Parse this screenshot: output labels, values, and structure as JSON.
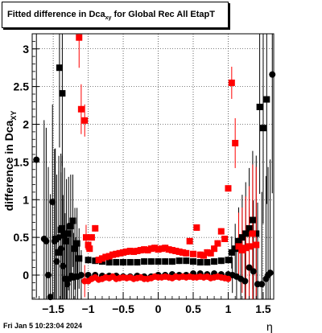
{
  "chart_data": {
    "type": "scatter",
    "title_main": "Fitted difference in Dca",
    "title_sub": "xy",
    "title_rest": " for Global Rec All EtapT",
    "xlabel": "η",
    "ylabel_main": "difference in Dca",
    "ylabel_sub": "XY",
    "xlim": [
      -1.8,
      1.65
    ],
    "ylim": [
      -0.32,
      3.2
    ],
    "xticks": [
      -1.5,
      -1,
      -0.5,
      0,
      0.5,
      1,
      1.5
    ],
    "xtick_labels": [
      "−1.5",
      "−1",
      "−0.5",
      "0",
      "0.5",
      "1",
      "1.5"
    ],
    "yticks": [
      0,
      0.5,
      1,
      1.5,
      2,
      2.5,
      3
    ],
    "ytick_labels": [
      "0",
      "0.5",
      "1",
      "1.5",
      "2",
      "2.5",
      "3"
    ],
    "grid": true,
    "series": [
      {
        "color": "#000000",
        "marker": "circle",
        "points": [
          [
            -1.74,
            1.53
          ],
          [
            -1.63,
            0.48
          ],
          [
            -1.6,
            0.45
          ],
          [
            -1.57,
            0.0
          ],
          [
            -1.54,
            -0.29
          ],
          [
            -1.51,
            0.97
          ],
          [
            -1.48,
            0.45
          ],
          [
            -1.45,
            0.18
          ],
          [
            -1.42,
            0.5
          ],
          [
            -1.39,
            0.35
          ],
          [
            -1.36,
            0.12
          ],
          [
            -1.33,
            -0.05
          ],
          [
            -1.3,
            -0.12
          ],
          [
            -1.27,
            -0.05
          ],
          [
            -1.24,
            -0.01
          ],
          [
            -1.21,
            -0.03
          ],
          [
            -1.18,
            -0.02
          ],
          [
            -1.15,
            -0.02
          ],
          [
            -1.1,
            0.0
          ],
          [
            -1.0,
            0.0
          ],
          [
            -0.9,
            0.0
          ],
          [
            -0.8,
            -0.01
          ],
          [
            -0.7,
            -0.01
          ],
          [
            -0.6,
            -0.01
          ],
          [
            -0.5,
            -0.02
          ],
          [
            -0.4,
            -0.02
          ],
          [
            -0.3,
            -0.01
          ],
          [
            -0.2,
            -0.02
          ],
          [
            -0.1,
            -0.02
          ],
          [
            0.0,
            0.0
          ],
          [
            0.1,
            0.0
          ],
          [
            0.2,
            0.01
          ],
          [
            0.3,
            0.0
          ],
          [
            0.4,
            0.0
          ],
          [
            0.5,
            0.02
          ],
          [
            0.6,
            0.02
          ],
          [
            0.7,
            0.01
          ],
          [
            0.8,
            0.02
          ],
          [
            0.9,
            0.01
          ],
          [
            1.0,
            0.01
          ],
          [
            1.06,
            0.0
          ],
          [
            1.12,
            -0.02
          ],
          [
            1.18,
            -0.05
          ],
          [
            1.24,
            -0.08
          ],
          [
            1.3,
            0.1
          ],
          [
            1.36,
            0.05
          ],
          [
            1.42,
            -0.12
          ],
          [
            1.48,
            -0.12
          ],
          [
            1.54,
            -0.05
          ],
          [
            1.57,
            0.0
          ],
          [
            1.6,
            0.03
          ],
          [
            1.63,
            2.66
          ]
        ]
      },
      {
        "color": "#000000",
        "marker": "square",
        "points": [
          [
            -1.47,
            0.48
          ],
          [
            -1.42,
            0.3
          ],
          [
            -1.39,
            0.6
          ],
          [
            -1.37,
            0.62
          ],
          [
            -1.34,
            0.53
          ],
          [
            -1.31,
            0.45
          ],
          [
            -1.28,
            0.55
          ],
          [
            -1.25,
            0.65
          ],
          [
            -1.22,
            0.72
          ],
          [
            -1.19,
            0.35
          ],
          [
            -1.16,
            0.42
          ],
          [
            -1.13,
            0.22
          ],
          [
            -1.41,
            2.75
          ],
          [
            -1.37,
            2.41
          ],
          [
            -1.0,
            0.2
          ],
          [
            -0.9,
            0.19
          ],
          [
            -0.8,
            0.18
          ],
          [
            -0.7,
            0.17
          ],
          [
            -0.6,
            0.17
          ],
          [
            -0.5,
            0.17
          ],
          [
            -0.4,
            0.17
          ],
          [
            -0.3,
            0.17
          ],
          [
            -0.2,
            0.18
          ],
          [
            -0.1,
            0.18
          ],
          [
            0.0,
            0.18
          ],
          [
            0.1,
            0.18
          ],
          [
            0.2,
            0.18
          ],
          [
            0.3,
            0.19
          ],
          [
            0.4,
            0.19
          ],
          [
            0.5,
            0.18
          ],
          [
            0.6,
            0.17
          ],
          [
            0.7,
            0.17
          ],
          [
            0.8,
            0.18
          ],
          [
            0.9,
            0.19
          ],
          [
            1.0,
            0.2
          ],
          [
            1.05,
            0.3
          ],
          [
            1.1,
            0.35
          ],
          [
            1.15,
            0.45
          ],
          [
            1.2,
            0.5
          ],
          [
            1.25,
            0.55
          ],
          [
            1.3,
            0.62
          ],
          [
            1.35,
            0.73
          ],
          [
            1.4,
            0.55
          ],
          [
            1.45,
            2.23
          ],
          [
            1.5,
            1.95
          ],
          [
            1.55,
            2.33
          ]
        ]
      },
      {
        "color": "#ff0000",
        "marker": "circle",
        "points": [
          [
            -1.05,
            -0.08
          ],
          [
            -1.0,
            -0.08
          ],
          [
            -0.95,
            -0.05
          ],
          [
            -0.9,
            -0.03
          ],
          [
            -0.85,
            -0.06
          ],
          [
            -0.8,
            -0.05
          ],
          [
            -0.75,
            -0.03
          ],
          [
            -0.7,
            -0.04
          ],
          [
            -0.65,
            -0.02
          ],
          [
            -0.6,
            -0.05
          ],
          [
            -0.55,
            -0.04
          ],
          [
            -0.5,
            -0.03
          ],
          [
            -0.45,
            -0.04
          ],
          [
            -0.4,
            -0.03
          ],
          [
            -0.35,
            -0.05
          ],
          [
            -0.3,
            -0.04
          ],
          [
            -0.25,
            -0.03
          ],
          [
            -0.2,
            -0.05
          ],
          [
            -0.15,
            -0.05
          ],
          [
            -0.1,
            -0.04
          ],
          [
            -0.05,
            -0.02
          ],
          [
            0.0,
            -0.03
          ],
          [
            0.05,
            -0.03
          ],
          [
            0.1,
            -0.02
          ],
          [
            0.15,
            -0.03
          ],
          [
            0.2,
            -0.04
          ],
          [
            0.25,
            -0.02
          ],
          [
            0.3,
            -0.03
          ],
          [
            0.35,
            -0.02
          ],
          [
            0.4,
            -0.03
          ],
          [
            0.45,
            -0.02
          ],
          [
            0.5,
            -0.03
          ],
          [
            0.55,
            -0.03
          ],
          [
            0.6,
            -0.02
          ],
          [
            0.65,
            -0.03
          ],
          [
            0.7,
            -0.02
          ],
          [
            0.75,
            -0.04
          ],
          [
            0.8,
            -0.03
          ],
          [
            0.85,
            -0.02
          ],
          [
            0.9,
            -0.03
          ],
          [
            0.95,
            -0.04
          ],
          [
            1.0,
            -0.05
          ]
        ]
      },
      {
        "color": "#ff0000",
        "marker": "square",
        "points": [
          [
            -1.13,
            3.15
          ],
          [
            -1.1,
            2.2
          ],
          [
            -1.05,
            2.05
          ],
          [
            -1.0,
            0.4
          ],
          [
            -0.95,
            0.5
          ],
          [
            -0.9,
            0.62
          ],
          [
            -1.03,
            0.5
          ],
          [
            -0.98,
            0.35
          ],
          [
            -0.85,
            0.2
          ],
          [
            -0.8,
            0.22
          ],
          [
            -0.75,
            0.24
          ],
          [
            -0.7,
            0.25
          ],
          [
            -0.65,
            0.27
          ],
          [
            -0.6,
            0.28
          ],
          [
            -0.55,
            0.29
          ],
          [
            -0.5,
            0.3
          ],
          [
            -0.45,
            0.31
          ],
          [
            -0.4,
            0.32
          ],
          [
            -0.35,
            0.31
          ],
          [
            -0.3,
            0.32
          ],
          [
            -0.25,
            0.33
          ],
          [
            -0.2,
            0.34
          ],
          [
            -0.15,
            0.33
          ],
          [
            -0.1,
            0.35
          ],
          [
            -0.05,
            0.36
          ],
          [
            0.0,
            0.34
          ],
          [
            0.05,
            0.35
          ],
          [
            0.1,
            0.36
          ],
          [
            0.15,
            0.34
          ],
          [
            0.2,
            0.33
          ],
          [
            0.25,
            0.32
          ],
          [
            0.3,
            0.31
          ],
          [
            0.35,
            0.3
          ],
          [
            0.4,
            0.29
          ],
          [
            0.45,
            0.45
          ],
          [
            0.5,
            0.28
          ],
          [
            0.55,
            0.63
          ],
          [
            0.6,
            0.27
          ],
          [
            0.65,
            0.26
          ],
          [
            0.7,
            0.3
          ],
          [
            0.75,
            0.29
          ],
          [
            0.8,
            0.35
          ],
          [
            0.85,
            0.42
          ],
          [
            0.9,
            0.58
          ],
          [
            0.95,
            0.48
          ],
          [
            1.0,
            1.15
          ],
          [
            1.05,
            2.55
          ],
          [
            1.1,
            1.75
          ],
          [
            1.15,
            0.38
          ],
          [
            1.2,
            0.33
          ],
          [
            1.25,
            0.36
          ],
          [
            1.3,
            0.38
          ],
          [
            1.35,
            0.55
          ],
          [
            1.4,
            0.4
          ]
        ]
      }
    ]
  },
  "footer": "Fri Jan  5 10:23:04 2024"
}
